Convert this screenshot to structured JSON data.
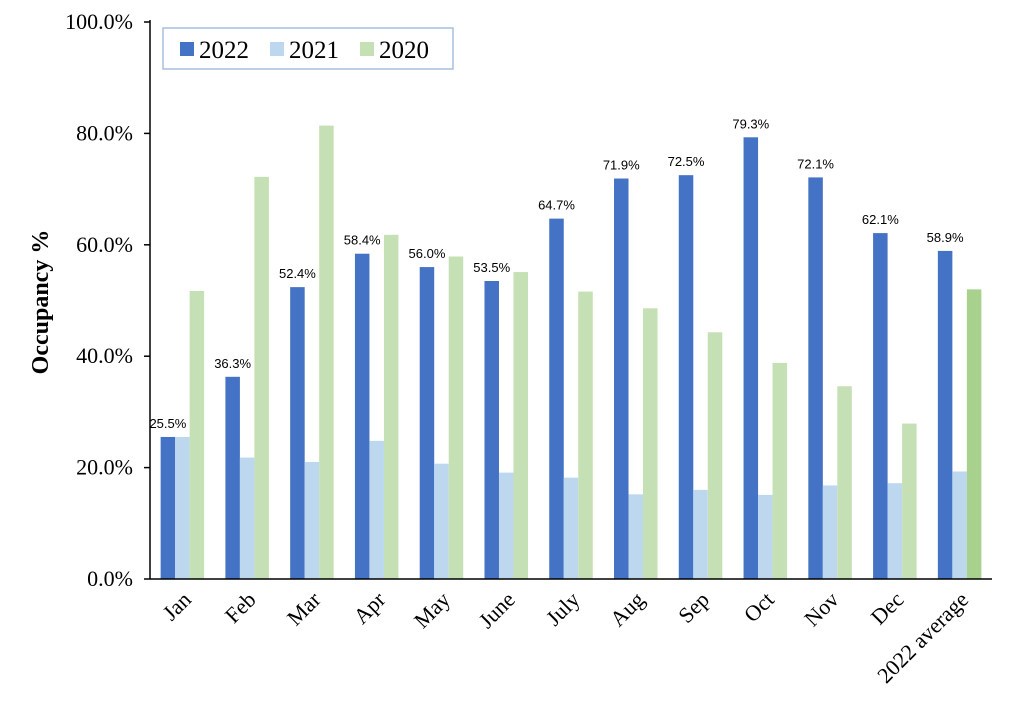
{
  "chart_data": {
    "type": "bar",
    "ylabel": "Occupancy %",
    "xlabel": "",
    "ylim": [
      0,
      100
    ],
    "yticks": [
      "0.0%",
      "20.0%",
      "40.0%",
      "60.0%",
      "80.0%",
      "100.0%"
    ],
    "ytick_values": [
      0,
      20,
      40,
      60,
      80,
      100
    ],
    "grid": false,
    "legend_position": "top-left",
    "categories": [
      "Jan",
      "Feb",
      "Mar",
      "Apr",
      "May",
      "June",
      "July",
      "Aug",
      "Sep",
      "Oct",
      "Nov",
      "Dec",
      "2022 average"
    ],
    "series": [
      {
        "name": "2022",
        "color": "#4472C4",
        "values": [
          25.5,
          36.3,
          52.4,
          58.4,
          56.0,
          53.5,
          64.7,
          71.9,
          72.5,
          79.3,
          72.1,
          62.1,
          58.9
        ],
        "labels": [
          "25.5%",
          "36.3%",
          "52.4%",
          "58.4%",
          "56.0%",
          "53.5%",
          "64.7%",
          "71.9%",
          "72.5%",
          "79.3%",
          "72.1%",
          "62.1%",
          "58.9%"
        ]
      },
      {
        "name": "2021",
        "color": "#BDD7EE",
        "values": [
          25.5,
          21.8,
          21.0,
          24.8,
          20.7,
          19.1,
          18.2,
          15.2,
          16.0,
          15.1,
          16.8,
          17.2,
          19.3
        ]
      },
      {
        "name": "2020",
        "color": "#C5E0B4",
        "highlight_color": "#A9D18E",
        "values": [
          51.7,
          72.2,
          81.4,
          61.8,
          57.9,
          55.1,
          51.6,
          48.6,
          44.3,
          38.8,
          34.6,
          27.9,
          52.0
        ]
      }
    ]
  }
}
